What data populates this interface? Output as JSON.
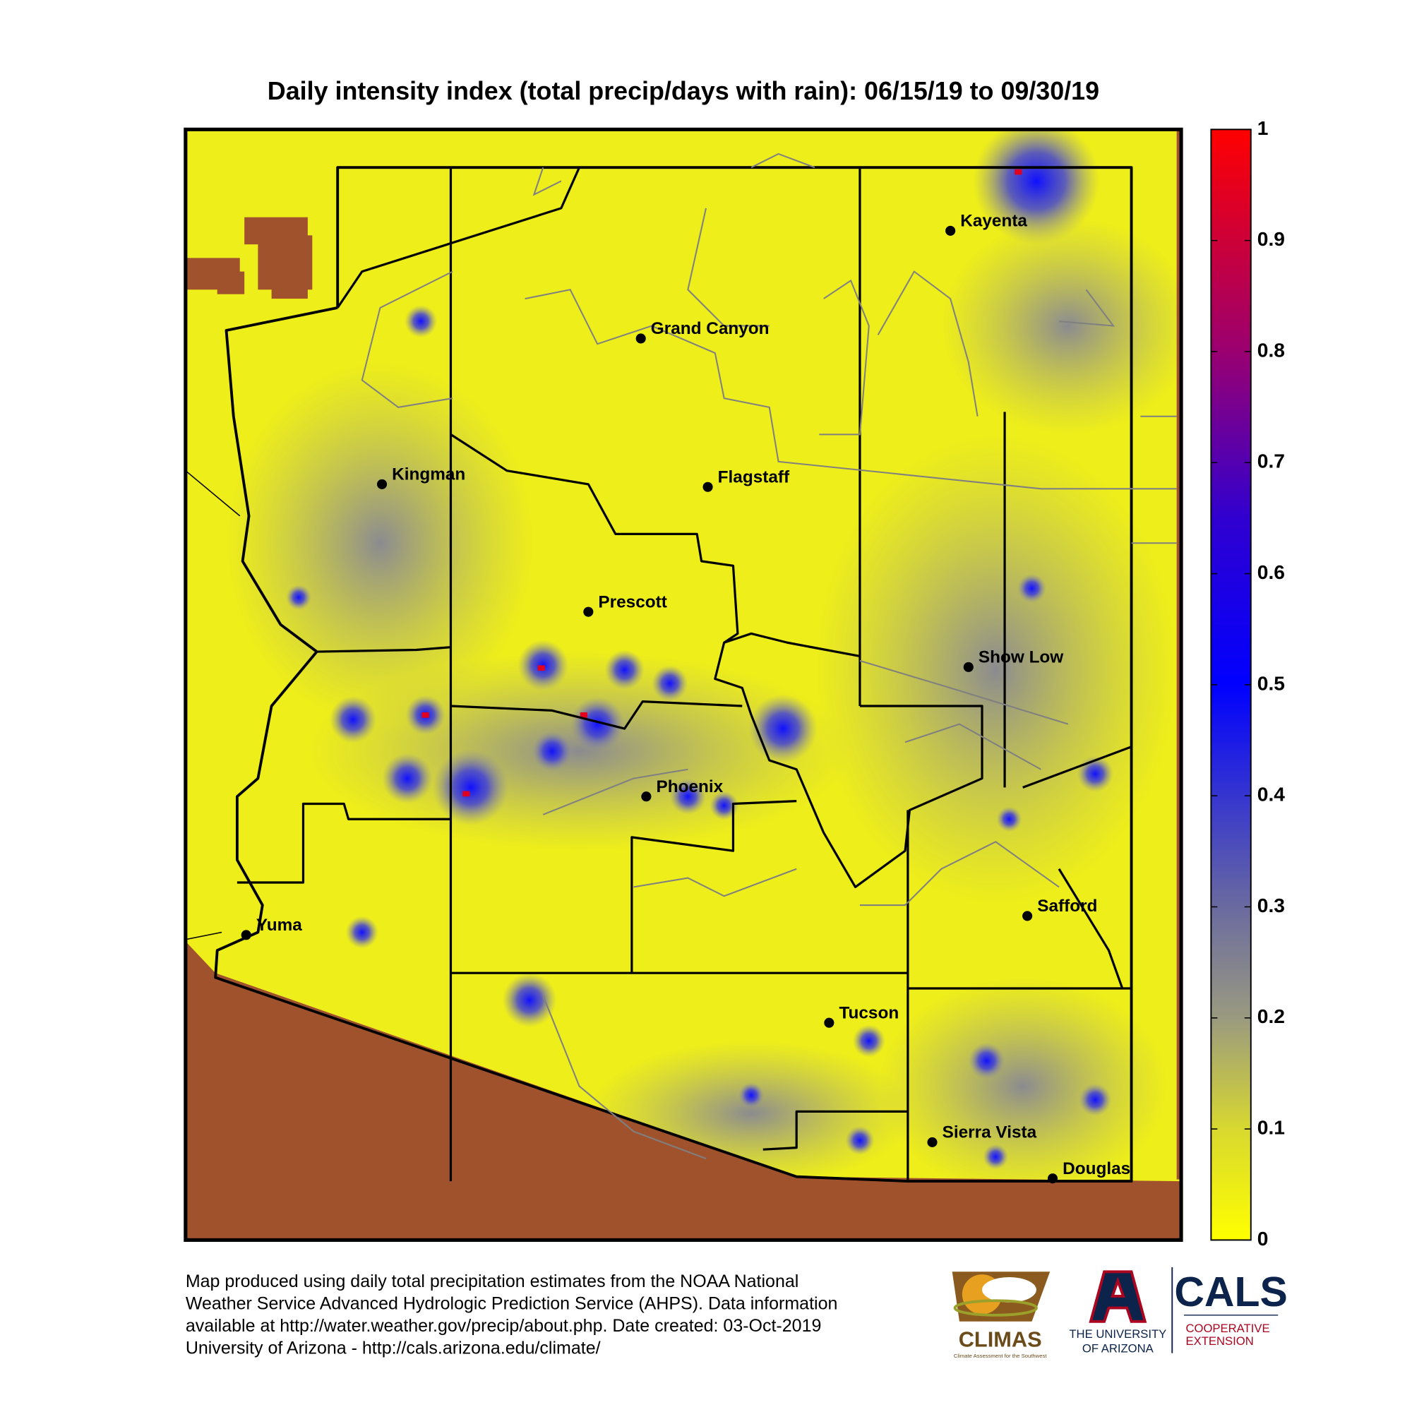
{
  "title": "Daily intensity index (total precip/days with rain): 06/15/19 to 09/30/19",
  "cities": [
    "Kayenta",
    "Grand Canyon",
    "Flagstaff",
    "Kingman",
    "Prescott",
    "Show Low",
    "Phoenix",
    "Safford",
    "Yuma",
    "Tucson",
    "Sierra Vista",
    "Douglas"
  ],
  "colorbar": {
    "ylim": [
      0,
      1
    ],
    "yticks": [
      0,
      0.1,
      0.2,
      0.3,
      0.4,
      0.5,
      0.6,
      0.7,
      0.8,
      0.9,
      1
    ]
  },
  "footer": {
    "lines": [
      "Map produced using daily total precipitation estimates from the NOAA National",
      "Weather Service Advanced Hydrologic Prediction Service (AHPS). Data information",
      "available at http://water.weather.gov/precip/about.php. Date created: 03-Oct-2019",
      "University of Arizona - http://cals.arizona.edu/climate/"
    ]
  },
  "logos": {
    "climas": "CLIMAS",
    "climas_sub": "Climate Assessment for the Southwest",
    "uofa": [
      "THE UNIVERSITY",
      "OF ARIZONA"
    ],
    "cals": "CALS",
    "cals_sub": [
      "COOPERATIVE",
      "EXTENSION"
    ]
  }
}
